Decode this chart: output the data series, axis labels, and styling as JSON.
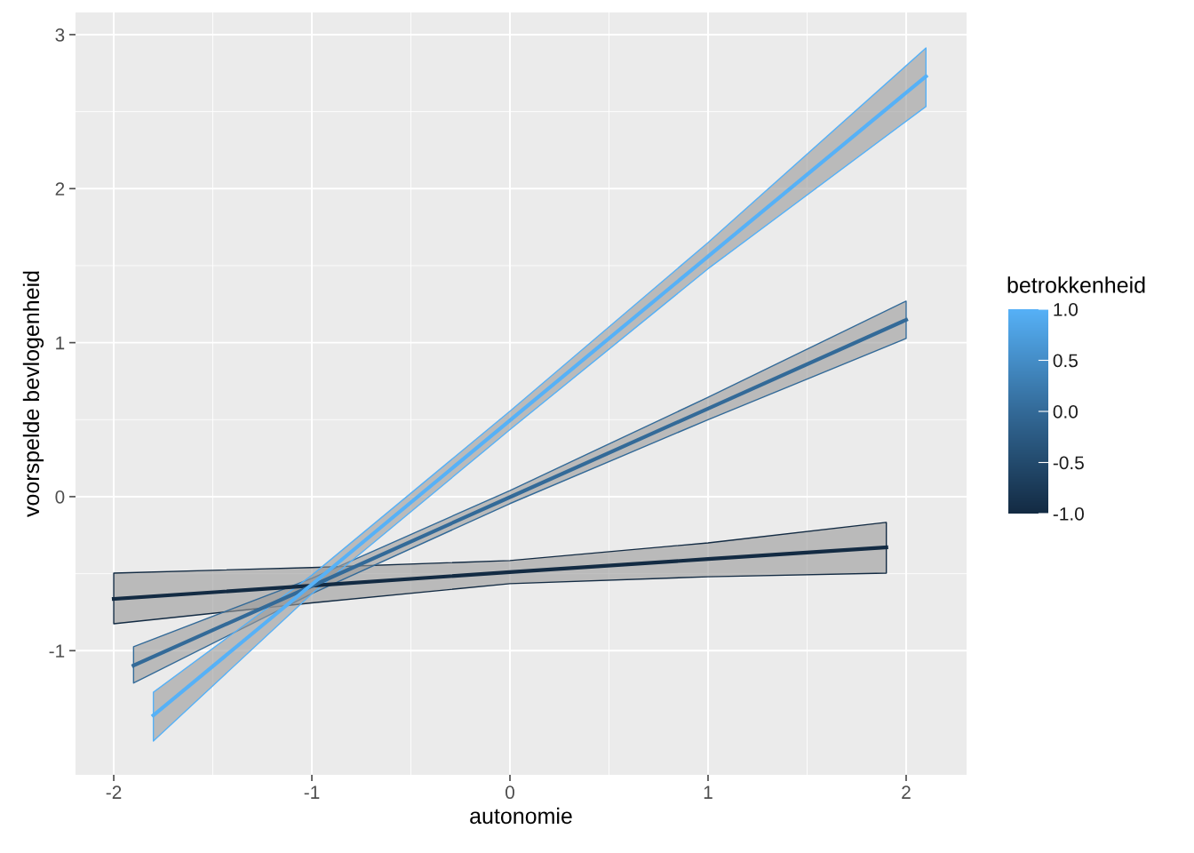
{
  "chart_data": {
    "type": "line",
    "xlabel": "autonomie",
    "ylabel": "voorspelde bevlogenheid",
    "clabel": "betrokkenheid",
    "xlim": [
      -2.193,
      2.305
    ],
    "ylim": [
      -1.806,
      3.144
    ],
    "xticks": [
      -2,
      -1,
      0,
      1,
      2
    ],
    "yticks": [
      -1,
      0,
      1,
      2,
      3
    ],
    "clim": [
      -1,
      1
    ],
    "cticks": [
      {
        "value": -1,
        "label": "-1.0"
      },
      {
        "value": -0.5,
        "label": "-0.5"
      },
      {
        "value": 0,
        "label": "0.0"
      },
      {
        "value": 0.5,
        "label": "0.5"
      },
      {
        "value": 1,
        "label": "1.0"
      }
    ],
    "grid": true,
    "series": [
      {
        "color": "#132b43",
        "x": [
          -2,
          -1,
          0,
          1,
          1.9
        ],
        "values": [
          -0.664,
          -0.578,
          -0.49,
          -0.405,
          -0.329
        ],
        "lower": [
          -0.825,
          -0.69,
          -0.565,
          -0.52,
          -0.496
        ],
        "upper": [
          -0.496,
          -0.46,
          -0.415,
          -0.3,
          -0.167
        ]
      },
      {
        "color": "#336a98",
        "x": [
          -1.9,
          -1,
          0,
          1,
          2
        ],
        "values": [
          -1.096,
          -0.58,
          -0.003,
          0.572,
          1.148
        ],
        "lower": [
          -1.21,
          -0.63,
          -0.045,
          0.5,
          1.027
        ],
        "upper": [
          -0.975,
          -0.53,
          0.04,
          0.645,
          1.27
        ]
      },
      {
        "color": "#56b1f7",
        "x": [
          -1.8,
          -1,
          0,
          1,
          2.1
        ],
        "values": [
          -1.42,
          -0.57,
          0.495,
          1.56,
          2.729
        ],
        "lower": [
          -1.587,
          -0.63,
          0.435,
          1.48,
          2.533
        ],
        "upper": [
          -1.27,
          -0.51,
          0.555,
          1.65,
          2.913
        ]
      }
    ]
  }
}
